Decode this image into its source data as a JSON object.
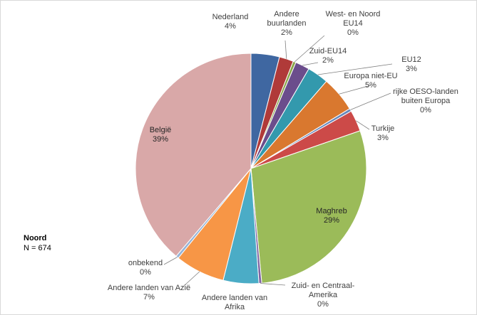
{
  "chart_data": {
    "type": "pie",
    "region": "Noord",
    "sample": "N = 674",
    "slices": [
      {
        "label": "Nederland",
        "value": 4,
        "pct": "4%",
        "color": "#3f67a1"
      },
      {
        "label": "Andere buurlanden",
        "value": 2,
        "pct": "2%",
        "color": "#b03a39"
      },
      {
        "label": "West- en Noord EU14",
        "value": 0.4,
        "pct": "0%",
        "color": "#8aa64a"
      },
      {
        "label": "Zuid-EU14",
        "value": 2,
        "pct": "2%",
        "color": "#6b4d8c"
      },
      {
        "label": "EU12",
        "value": 3,
        "pct": "3%",
        "color": "#3399ad"
      },
      {
        "label": "Europa niet-EU",
        "value": 5,
        "pct": "5%",
        "color": "#d9782f"
      },
      {
        "label": "rijke OESO-landen buiten Europa",
        "value": 0.4,
        "pct": "0%",
        "color": "#6688bb"
      },
      {
        "label": "Turkije",
        "value": 3,
        "pct": "3%",
        "color": "#cc4a48"
      },
      {
        "label": "Maghreb",
        "value": 29,
        "pct": "29%",
        "color": "#9bbb59"
      },
      {
        "label": "Zuid- en Centraal-Amerika",
        "value": 0.4,
        "pct": "0%",
        "color": "#8064a2"
      },
      {
        "label": "Andere landen van Afrika",
        "value": 5,
        "pct": "5%",
        "color": "#4bacc6"
      },
      {
        "label": "Andere landen van Azië",
        "value": 7,
        "pct": "7%",
        "color": "#f79646"
      },
      {
        "label": "onbekend",
        "value": 0.4,
        "pct": "0%",
        "color": "#95b3d7"
      },
      {
        "label": "België",
        "value": 39,
        "pct": "39%",
        "color": "#d9a8a8"
      }
    ]
  },
  "legend_text": {
    "region_title": "Noord",
    "sample_size": "N = 674"
  }
}
